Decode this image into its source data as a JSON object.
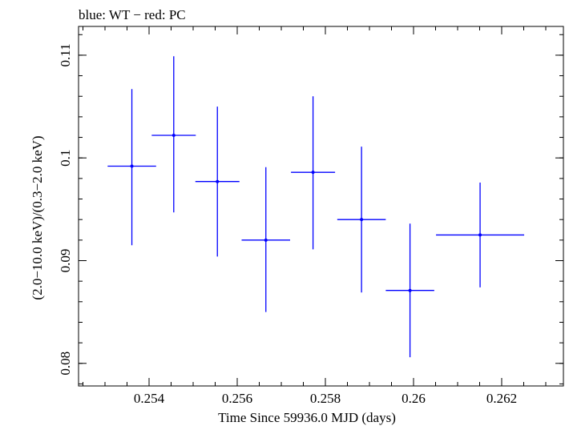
{
  "chart_data": {
    "type": "scatter",
    "title": "blue: WT − red: PC",
    "xlabel": "Time Since 59936.0 MJD (days)",
    "ylabel": "(2.0−10.0 keV)/(0.3−2.0 keV)",
    "xlim": [
      0.2524,
      0.2634
    ],
    "ylim": [
      0.0778,
      0.1128
    ],
    "x_ticks": [
      0.254,
      0.256,
      0.258,
      0.26,
      0.262
    ],
    "x_tick_labels": [
      "0.254",
      "0.256",
      "0.258",
      "0.26",
      "0.262"
    ],
    "y_ticks": [
      0.08,
      0.09,
      0.1,
      0.11
    ],
    "y_tick_labels": [
      "0.08",
      "0.09",
      "0.1",
      "0.11"
    ],
    "grid": false,
    "series": [
      {
        "color": "#0000ff",
        "points": [
          {
            "x": 0.25361,
            "y": 0.0992,
            "xerr": 0.00055,
            "yerr_low": 0.0077,
            "yerr_high": 0.0075
          },
          {
            "x": 0.25456,
            "y": 0.1022,
            "xerr": 0.0005,
            "yerr_low": 0.0075,
            "yerr_high": 0.0077
          },
          {
            "x": 0.25555,
            "y": 0.0977,
            "xerr": 0.0005,
            "yerr_low": 0.0073,
            "yerr_high": 0.0073
          },
          {
            "x": 0.25665,
            "y": 0.092,
            "xerr": 0.00055,
            "yerr_low": 0.007,
            "yerr_high": 0.0071
          },
          {
            "x": 0.25772,
            "y": 0.0986,
            "xerr": 0.0005,
            "yerr_low": 0.0075,
            "yerr_high": 0.0074
          },
          {
            "x": 0.25882,
            "y": 0.094,
            "xerr": 0.00055,
            "yerr_low": 0.0071,
            "yerr_high": 0.0071
          },
          {
            "x": 0.25992,
            "y": 0.0871,
            "xerr": 0.00055,
            "yerr_low": 0.0065,
            "yerr_high": 0.0065
          },
          {
            "x": 0.26151,
            "y": 0.0925,
            "xerr": 0.001,
            "yerr_low": 0.0051,
            "yerr_high": 0.0051
          }
        ]
      }
    ]
  }
}
